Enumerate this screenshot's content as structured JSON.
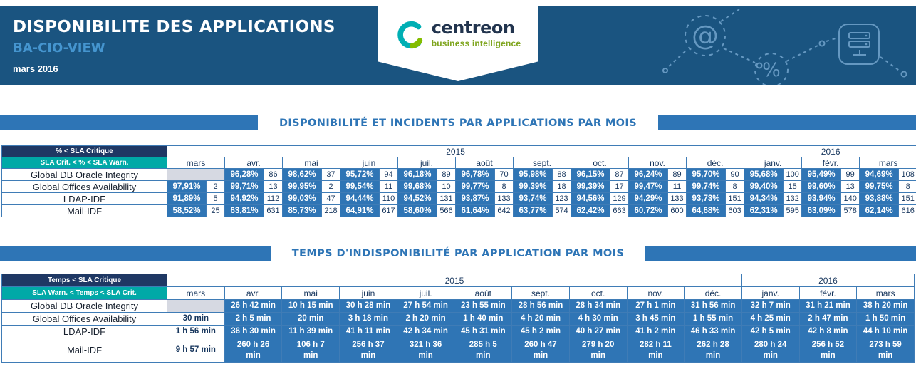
{
  "header": {
    "title": "DISPONIBILITE DES APPLICATIONS",
    "subtitle": "BA-CIO-VIEW",
    "period": "mars 2016",
    "logo_text": "centreon",
    "logo_tagline": "business intelligence",
    "decor_icons": [
      "at-symbol-icon",
      "percent-icon",
      "server-stack-icon"
    ]
  },
  "colors": {
    "banner_bg": "#1a5480",
    "accent_blue": "#2e75b6",
    "cell_blue": "#2f75b5",
    "legend_critical_bg": "#1f3864",
    "legend_warning_bg": "#00a9a7",
    "empty_cell_gray": "#d6d9e2",
    "subtitle_blue": "#4595cf",
    "logo_green": "#84bd00",
    "logo_teal": "#00afb4"
  },
  "years": [
    {
      "label": "2015",
      "span": 10
    },
    {
      "label": "2016",
      "span": 3
    }
  ],
  "months": [
    "mars",
    "avr.",
    "mai",
    "juin",
    "juil.",
    "août",
    "sept.",
    "oct.",
    "nov.",
    "déc.",
    "janv.",
    "févr.",
    "mars"
  ],
  "availability": {
    "section_title": "DISPONIBILITÉ ET INCIDENTS PAR APPLICATIONS PAR MOIS",
    "legend": {
      "critical": "% < SLA Critique",
      "warning": "SLA Crit. < % < SLA Warn."
    },
    "rows": [
      {
        "label": "Global DB Oracle Integrity",
        "cells": [
          null,
          {
            "pct": "96,28%",
            "count": "86"
          },
          {
            "pct": "98,62%",
            "count": "37"
          },
          {
            "pct": "95,72%",
            "count": "94"
          },
          {
            "pct": "96,18%",
            "count": "89"
          },
          {
            "pct": "96,78%",
            "count": "70"
          },
          {
            "pct": "95,98%",
            "count": "88"
          },
          {
            "pct": "96,15%",
            "count": "87"
          },
          {
            "pct": "96,24%",
            "count": "89"
          },
          {
            "pct": "95,70%",
            "count": "90"
          },
          {
            "pct": "95,68%",
            "count": "100"
          },
          {
            "pct": "95,49%",
            "count": "99"
          },
          {
            "pct": "94,69%",
            "count": "108"
          }
        ]
      },
      {
        "label": "Global Offices Availability",
        "cells": [
          {
            "pct": "97,91%",
            "count": "2"
          },
          {
            "pct": "99,71%",
            "count": "13"
          },
          {
            "pct": "99,95%",
            "count": "2"
          },
          {
            "pct": "99,54%",
            "count": "11"
          },
          {
            "pct": "99,68%",
            "count": "10"
          },
          {
            "pct": "99,77%",
            "count": "8"
          },
          {
            "pct": "99,39%",
            "count": "18"
          },
          {
            "pct": "99,39%",
            "count": "17"
          },
          {
            "pct": "99,47%",
            "count": "11"
          },
          {
            "pct": "99,74%",
            "count": "8"
          },
          {
            "pct": "99,40%",
            "count": "15"
          },
          {
            "pct": "99,60%",
            "count": "13"
          },
          {
            "pct": "99,75%",
            "count": "8"
          }
        ]
      },
      {
        "label": "LDAP-IDF",
        "cells": [
          {
            "pct": "91,89%",
            "count": "5"
          },
          {
            "pct": "94,92%",
            "count": "112"
          },
          {
            "pct": "99,03%",
            "count": "47"
          },
          {
            "pct": "94,44%",
            "count": "110"
          },
          {
            "pct": "94,52%",
            "count": "131"
          },
          {
            "pct": "93,87%",
            "count": "133"
          },
          {
            "pct": "93,74%",
            "count": "123"
          },
          {
            "pct": "94,56%",
            "count": "129"
          },
          {
            "pct": "94,29%",
            "count": "133"
          },
          {
            "pct": "93,73%",
            "count": "151"
          },
          {
            "pct": "94,34%",
            "count": "132"
          },
          {
            "pct": "93,94%",
            "count": "140"
          },
          {
            "pct": "93,88%",
            "count": "151"
          }
        ]
      },
      {
        "label": "Mail-IDF",
        "cells": [
          {
            "pct": "58,52%",
            "count": "25"
          },
          {
            "pct": "63,81%",
            "count": "631"
          },
          {
            "pct": "85,73%",
            "count": "218"
          },
          {
            "pct": "64,91%",
            "count": "617"
          },
          {
            "pct": "58,60%",
            "count": "566"
          },
          {
            "pct": "61,64%",
            "count": "642"
          },
          {
            "pct": "63,77%",
            "count": "574"
          },
          {
            "pct": "62,42%",
            "count": "663"
          },
          {
            "pct": "60,72%",
            "count": "600"
          },
          {
            "pct": "64,68%",
            "count": "603"
          },
          {
            "pct": "62,31%",
            "count": "595"
          },
          {
            "pct": "63,09%",
            "count": "578"
          },
          {
            "pct": "62,14%",
            "count": "616"
          }
        ]
      }
    ]
  },
  "downtime": {
    "section_title": "TEMPS D'INDISPONIBILITÉ PAR APPLICATION PAR MOIS",
    "legend": {
      "critical": "Temps < SLA Critique",
      "warning": "SLA Warn. < Temps < SLA Crit."
    },
    "rows": [
      {
        "label": "Global DB Oracle Integrity",
        "cells": [
          null,
          "26 h 42 min",
          "10 h 15 min",
          "30 h 28 min",
          "27 h 54 min",
          "23 h 55 min",
          "28 h 56 min",
          "28 h 34 min",
          "27 h 1 min",
          "31 h 56 min",
          "32 h 7 min",
          "31 h 21 min",
          "38 h 20 min"
        ]
      },
      {
        "label": "Global Offices Availability",
        "cells": [
          {
            "value": "30 min",
            "light": true
          },
          "2 h 5 min",
          "20 min",
          "3 h 18 min",
          "2 h 20 min",
          "1 h 40 min",
          "4 h 20 min",
          "4 h 30 min",
          "3 h 45 min",
          "1 h 55 min",
          "4 h 25 min",
          "2 h 47 min",
          "1 h 50 min"
        ]
      },
      {
        "label": "LDAP-IDF",
        "cells": [
          {
            "value": "1 h 56 min",
            "light": true
          },
          "36 h 30 min",
          "11 h 39 min",
          "41 h 11 min",
          "42 h 34 min",
          "45 h 31 min",
          "45 h 2 min",
          "40 h 27 min",
          "41 h 2 min",
          "46 h 33 min",
          "42 h 5 min",
          "42 h 8 min",
          "44 h 10 min"
        ]
      },
      {
        "label": "Mail-IDF",
        "tall": true,
        "cells": [
          {
            "value": "9 h 57 min",
            "light": true
          },
          "260 h 26 min",
          "106 h 7 min",
          "256 h 37 min",
          "321 h 36 min",
          "285 h 5 min",
          "260 h 47 min",
          "279 h 20 min",
          "282 h 11 min",
          "262 h 28 min",
          "280 h 24 min",
          "256 h 52 min",
          "273 h 59 min"
        ]
      }
    ]
  }
}
